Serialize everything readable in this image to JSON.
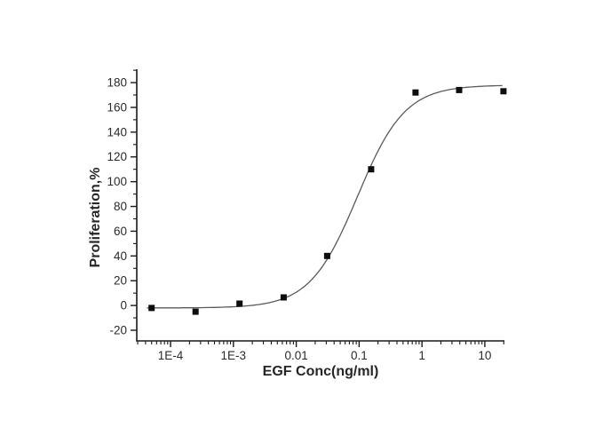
{
  "chart_data": {
    "type": "scatter",
    "title": "",
    "xlabel": "EGF Conc(ng/ml)",
    "ylabel": "Proliferation,%",
    "x_scale": "log",
    "grid": false,
    "legend": "none",
    "xlim": [
      2.9e-05,
      20.5
    ],
    "ylim": [
      -28.6,
      190.8
    ],
    "x_ticks": [
      {
        "label": "1E-4",
        "value": 0.0001
      },
      {
        "label": "1E-3",
        "value": 0.001
      },
      {
        "label": "0.01",
        "value": 0.01
      },
      {
        "label": "0.1",
        "value": 0.1
      },
      {
        "label": "1",
        "value": 1
      },
      {
        "label": "10",
        "value": 10
      }
    ],
    "y_ticks": [
      {
        "label": "-20",
        "value": -20
      },
      {
        "label": "0",
        "value": 0
      },
      {
        "label": "20",
        "value": 20
      },
      {
        "label": "40",
        "value": 40
      },
      {
        "label": "60",
        "value": 60
      },
      {
        "label": "80",
        "value": 80
      },
      {
        "label": "100",
        "value": 100
      },
      {
        "label": "120",
        "value": 120
      },
      {
        "label": "140",
        "value": 140
      },
      {
        "label": "160",
        "value": 160
      },
      {
        "label": "180",
        "value": 180
      }
    ],
    "y_minor_step": 10,
    "points": [
      [
        5e-05,
        -2
      ],
      [
        0.00025,
        -5
      ],
      [
        0.00125,
        1.5
      ],
      [
        0.0063,
        6.5
      ],
      [
        0.031,
        40
      ],
      [
        0.155,
        110
      ],
      [
        0.79,
        172
      ],
      [
        3.9,
        174
      ],
      [
        19.8,
        173
      ]
    ],
    "fit_curve": {
      "model": "4PL",
      "bottom": -2,
      "top": 178,
      "ec50": 0.094,
      "hill": 1.15,
      "x_start": 4.2e-05,
      "x_end": 19
    },
    "marker": "square",
    "marker_size": 7,
    "colors": {
      "axis": "#1a1a1a",
      "curve": "#5a5a5a",
      "marker": "#0d0d0d",
      "text": "#2b2b2b"
    }
  }
}
